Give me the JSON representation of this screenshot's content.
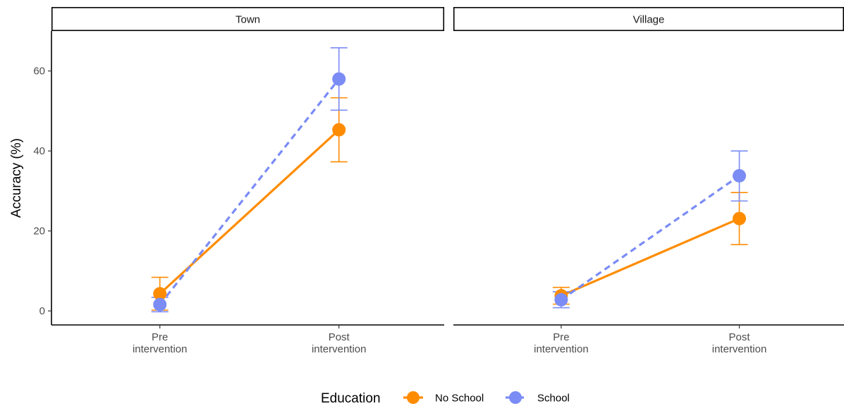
{
  "chart_data": {
    "type": "line",
    "facets": [
      "Town",
      "Village"
    ],
    "categories": [
      "Pre\nintervention",
      "Post\nintervention"
    ],
    "ylabel": "Accuracy (%)",
    "xlabel": "",
    "ylim": [
      -3.5,
      70
    ],
    "yticks": [
      0,
      20,
      40,
      60
    ],
    "grid": false,
    "legend_position": "bottom",
    "legend_title": "Education",
    "series": [
      {
        "name": "No School",
        "color": "#FF8C00",
        "linestyle": "solid",
        "values": {
          "Town": [
            4.3,
            45.3
          ],
          "Village": [
            3.8,
            23.1
          ]
        },
        "error_low": {
          "Town": [
            0.2,
            37.3
          ],
          "Village": [
            1.7,
            16.6
          ]
        },
        "error_high": {
          "Town": [
            8.4,
            53.3
          ],
          "Village": [
            5.9,
            29.6
          ]
        }
      },
      {
        "name": "School",
        "color": "#7B8CF5",
        "linestyle": "dashed",
        "values": {
          "Town": [
            1.6,
            58.0
          ],
          "Village": [
            2.8,
            33.8
          ]
        },
        "error_low": {
          "Town": [
            -0.2,
            50.2
          ],
          "Village": [
            0.8,
            27.5
          ]
        },
        "error_high": {
          "Town": [
            3.4,
            65.8
          ],
          "Village": [
            4.8,
            40.0
          ]
        }
      }
    ]
  }
}
